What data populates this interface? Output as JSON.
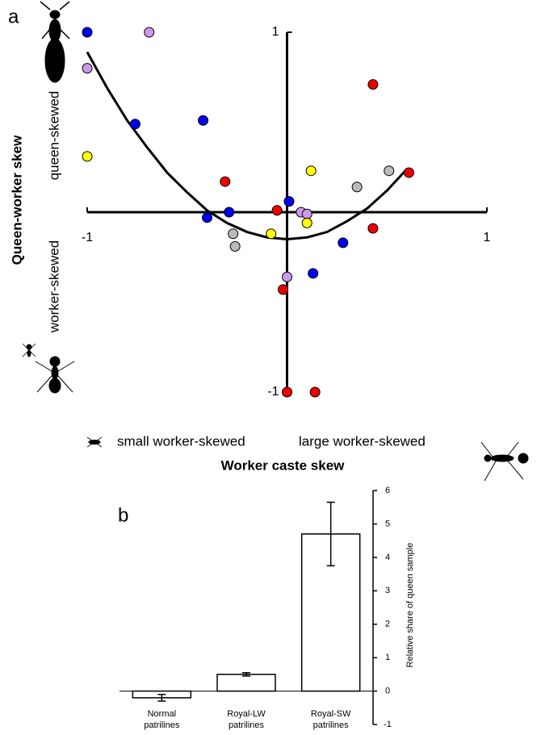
{
  "chart_data": [
    {
      "type": "scatter",
      "panel_label": "a",
      "y_label": "Queen-worker skew",
      "y_upper_label": "queen-skewed",
      "y_lower_label": "worker-skewed",
      "x_left_label": "small worker-skewed",
      "x_right_label": "large worker-skewed",
      "x_label": "Worker caste skew",
      "xlim": [
        -1,
        1
      ],
      "ylim": [
        -1,
        1
      ],
      "xticks": [
        -1,
        1
      ],
      "yticks": [
        -1,
        1
      ],
      "series": [
        {
          "color": "#0000ee",
          "x": [
            -1,
            -0.76,
            -0.42,
            -0.4,
            -0.29,
            0.01,
            0.28,
            0.13
          ],
          "values": [
            1,
            0.49,
            0.51,
            -0.03,
            0,
            0.06,
            -0.17,
            -0.34
          ]
        },
        {
          "color": "#cc99ee",
          "x": [
            -0.69,
            -1,
            0.07,
            0.1,
            0
          ],
          "values": [
            1,
            0.8,
            0,
            -0.01,
            -0.36
          ]
        },
        {
          "color": "#ee0000",
          "x": [
            0.43,
            0.61,
            -0.31,
            -0.05,
            0.43,
            -0.02,
            0,
            0.14
          ],
          "values": [
            0.71,
            0.22,
            0.17,
            0.01,
            -0.09,
            -0.43,
            -1,
            -1
          ]
        },
        {
          "color": "#ffff00",
          "x": [
            -1,
            0.12,
            -0.08,
            0.1
          ],
          "values": [
            0.31,
            0.23,
            -0.12,
            -0.06
          ]
        },
        {
          "color": "#bbbbbb",
          "x": [
            0.51,
            0.35,
            -0.27,
            -0.26
          ],
          "values": [
            0.23,
            0.14,
            -0.12,
            -0.19
          ]
        }
      ],
      "trend": {
        "color": "#000000",
        "x": [
          -1,
          -0.9,
          -0.8,
          -0.7,
          -0.6,
          -0.5,
          -0.4,
          -0.3,
          -0.2,
          -0.1,
          0,
          0.1,
          0.2,
          0.3,
          0.4,
          0.5,
          0.6
        ],
        "values": [
          0.89,
          0.69,
          0.51,
          0.36,
          0.22,
          0.11,
          0.01,
          -0.06,
          -0.11,
          -0.14,
          -0.15,
          -0.14,
          -0.11,
          -0.05,
          0.02,
          0.12,
          0.24
        ]
      }
    },
    {
      "type": "bar",
      "panel_label": "b",
      "categories": [
        "Normal patrilines",
        "Royal-LW patrilines",
        "Royal-SW patrilines"
      ],
      "values": [
        -0.2,
        0.5,
        4.7
      ],
      "errors": [
        0.1,
        0.05,
        0.95
      ],
      "color": "#ffffff",
      "ylim": [
        -1,
        6
      ],
      "yticks": [
        -1,
        0,
        1,
        2,
        3,
        4,
        5,
        6
      ],
      "y_label": "Relative share of queen sample"
    }
  ]
}
